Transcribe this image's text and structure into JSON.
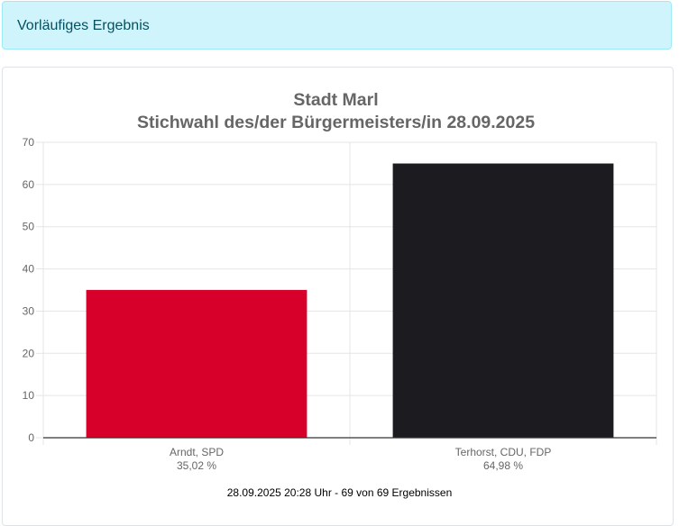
{
  "alert": {
    "text": "Vorläufiges Ergebnis"
  },
  "chart_data": {
    "type": "bar",
    "title": [
      "Stadt Marl",
      "Stichwahl des/der Bürgermeisters/in 28.09.2025"
    ],
    "categories": [
      "Arndt, SPD",
      "Terhorst, CDU, FDP"
    ],
    "value_labels": [
      "35,02 %",
      "64,98 %"
    ],
    "values": [
      35.02,
      64.98
    ],
    "colors": [
      "#d6002a",
      "#1c1b1f"
    ],
    "ylim": [
      0,
      70
    ],
    "yticks": [
      0,
      10,
      20,
      30,
      40,
      50,
      60,
      70
    ],
    "grid": true,
    "legend": "none"
  },
  "footer": {
    "text": "28.09.2025 20:28 Uhr - 69 von 69 Ergebnissen"
  }
}
